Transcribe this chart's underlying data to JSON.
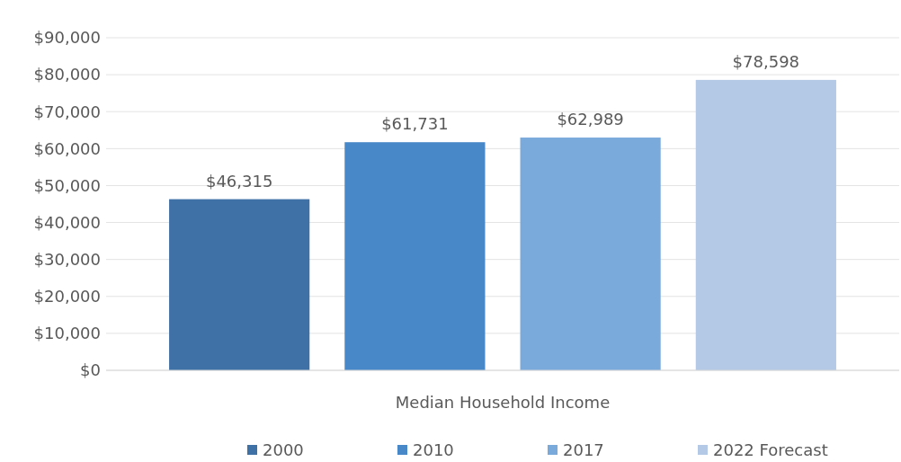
{
  "chart_data": {
    "type": "bar",
    "categories": [
      "Median Household Income"
    ],
    "series": [
      {
        "name": "2000",
        "color": "#3f70a6",
        "values": [
          46315
        ],
        "value_labels": [
          "$46,315"
        ]
      },
      {
        "name": "2010",
        "color": "#4887c8",
        "values": [
          61731
        ],
        "value_labels": [
          "$61,731"
        ]
      },
      {
        "name": "2017",
        "color": "#7aa9dc",
        "values": [
          62989
        ],
        "value_labels": [
          "$62,989"
        ]
      },
      {
        "name": "2022 Forecast",
        "color": "#b4c9e6",
        "values": [
          78598
        ],
        "value_labels": [
          "$78,598"
        ]
      }
    ],
    "ylim": [
      0,
      90000
    ],
    "yticks": [
      {
        "value": 0,
        "label": "$0"
      },
      {
        "value": 10000,
        "label": "$10,000"
      },
      {
        "value": 20000,
        "label": "$20,000"
      },
      {
        "value": 30000,
        "label": "$30,000"
      },
      {
        "value": 40000,
        "label": "$40,000"
      },
      {
        "value": 50000,
        "label": "$50,000"
      },
      {
        "value": 60000,
        "label": "$60,000"
      },
      {
        "value": 70000,
        "label": "$70,000"
      },
      {
        "value": 80000,
        "label": "$80,000"
      },
      {
        "value": 90000,
        "label": "$90,000"
      }
    ],
    "grid": "y",
    "legend": "bottom"
  }
}
